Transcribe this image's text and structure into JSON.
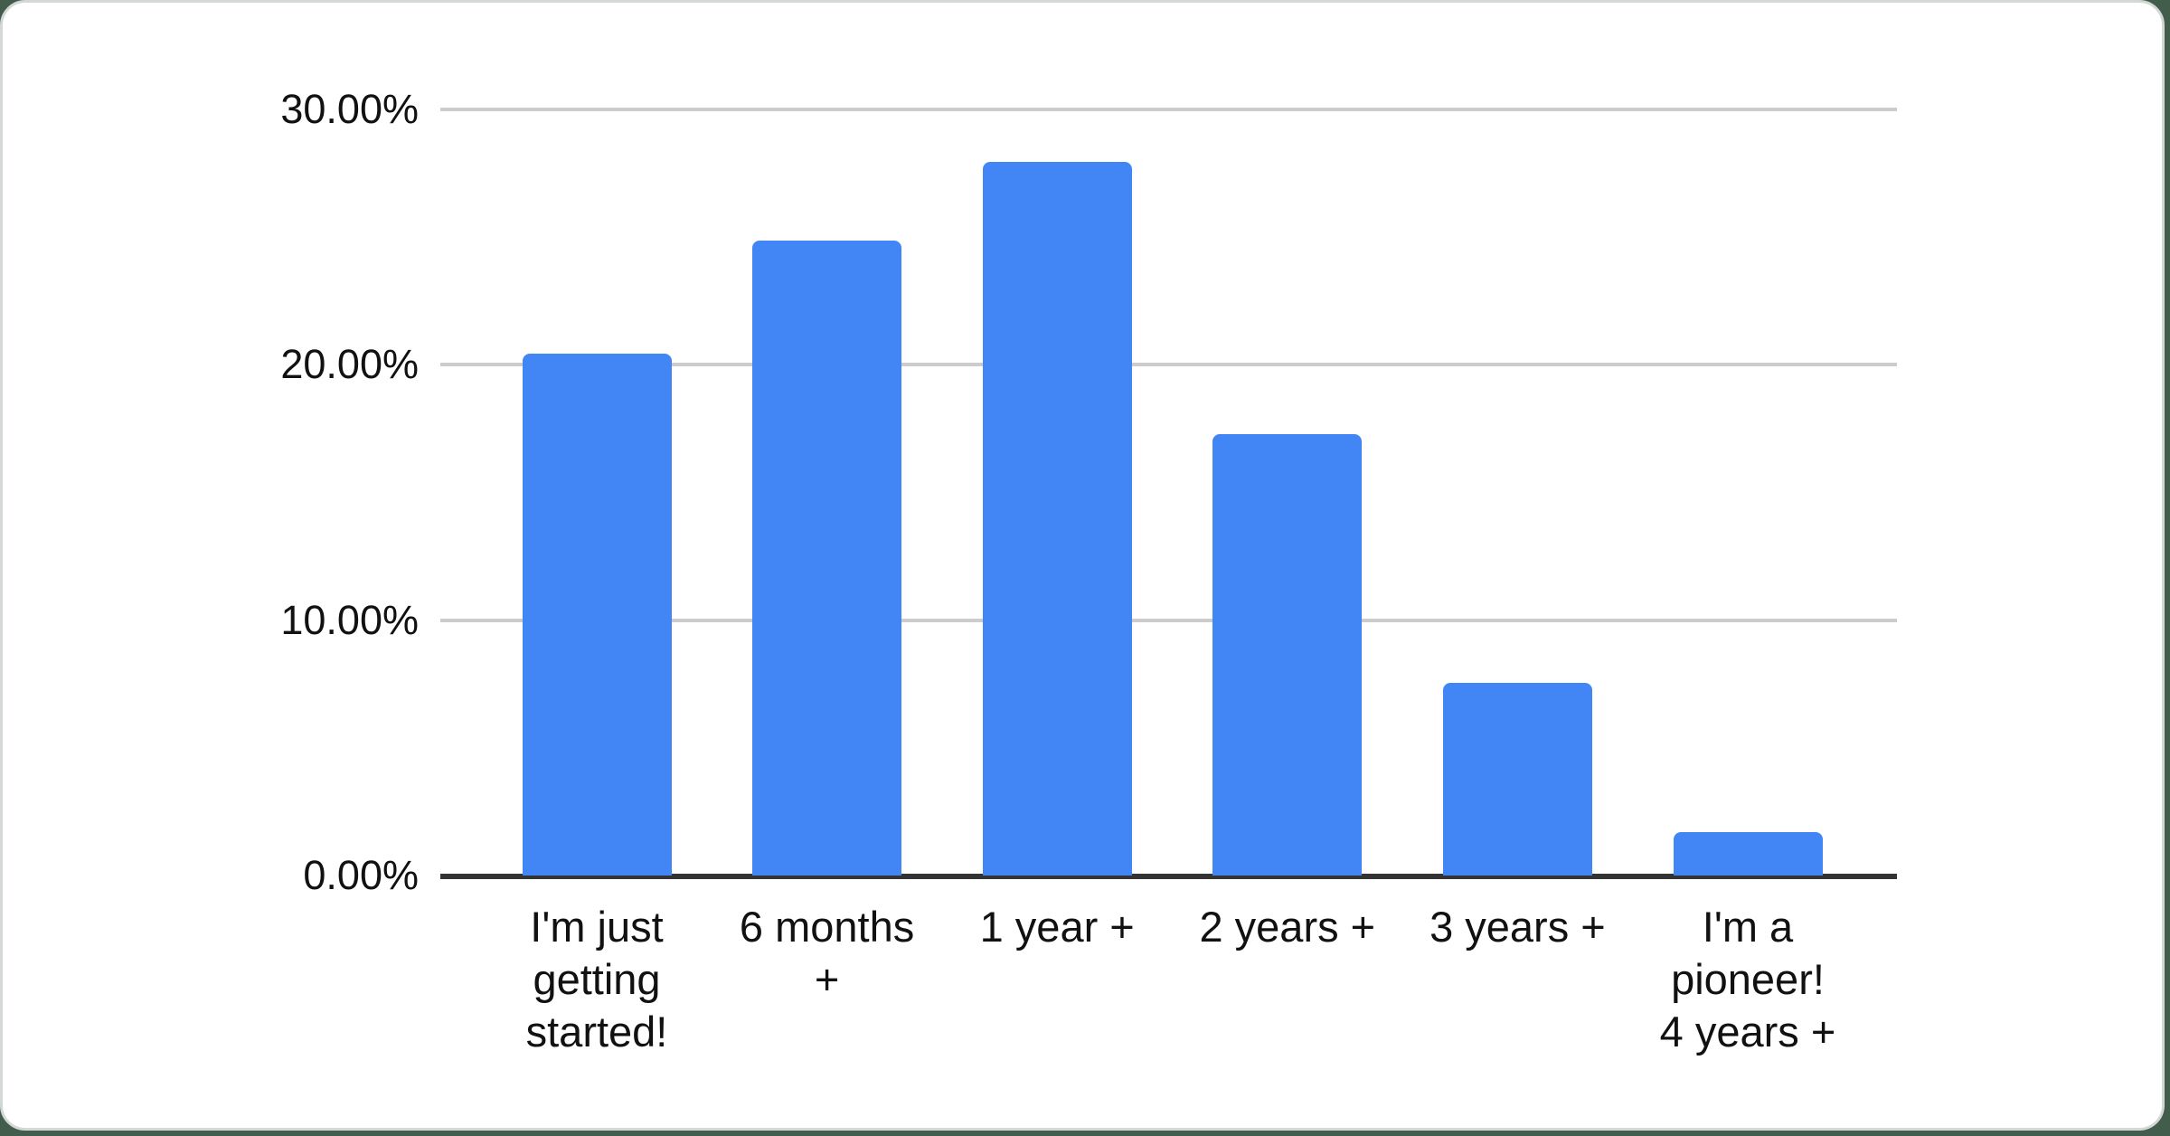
{
  "chart_data": {
    "type": "bar",
    "title": "",
    "categories": [
      "I'm just getting started!",
      "6 months +",
      "1 year +",
      "2 years +",
      "3 years +",
      "I'm a pioneer! 4 years +"
    ],
    "values": [
      20.45,
      24.85,
      27.95,
      17.3,
      7.55,
      1.7
    ],
    "x_tick_labels": [
      "I'm just\ngetting\nstarted!",
      "6 months\n+",
      "1 year +",
      "2 years +",
      "3 years +",
      "I'm a\npioneer!\n4 years +"
    ],
    "y_ticks": [
      {
        "label": "0.00%",
        "value": 0
      },
      {
        "label": "10.00%",
        "value": 10
      },
      {
        "label": "20.00%",
        "value": 20
      },
      {
        "label": "30.00%",
        "value": 30
      }
    ],
    "ylim": [
      0,
      30
    ],
    "xlabel": "",
    "ylabel": "",
    "legend": "none",
    "grid": "horizontal",
    "bar_color": "#4285f4",
    "gridline_color": "#cccccc",
    "axis_line_color": "#333333",
    "label_color": "#111111",
    "card_background": "#ffffff",
    "page_background": "#425d4c"
  }
}
